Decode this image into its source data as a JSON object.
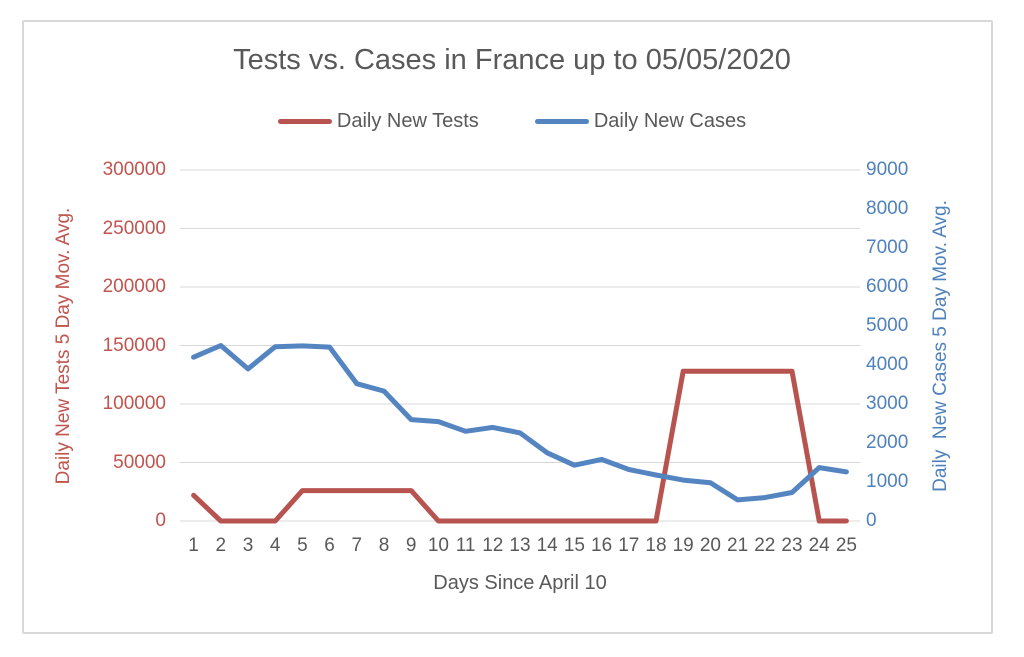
{
  "chart": {
    "title": "Tests vs. Cases in France up to 05/05/2020",
    "xlabel": "Days Since April 10"
  },
  "legend": {
    "items": [
      {
        "label": "Daily New Tests",
        "color": "#b85450"
      },
      {
        "label": "Daily New Cases",
        "color": "#5585c1"
      }
    ]
  },
  "chart_data": {
    "type": "line",
    "title": "Tests vs. Cases in France up to 05/05/2020",
    "xlabel": "Days Since April 10",
    "x": [
      1,
      2,
      3,
      4,
      5,
      6,
      7,
      8,
      9,
      10,
      11,
      12,
      13,
      14,
      15,
      16,
      17,
      18,
      19,
      20,
      21,
      22,
      23,
      24,
      25
    ],
    "x_tick_labels": [
      "1",
      "2",
      "3",
      "4",
      "5",
      "6",
      "7",
      "8",
      "9",
      "10",
      "11",
      "12",
      "13",
      "14",
      "15",
      "16",
      "17",
      "18",
      "19",
      "20",
      "21",
      "22",
      "23",
      "24",
      "25"
    ],
    "series": [
      {
        "name": "Daily New Tests",
        "axis": "left",
        "color": "#b85450",
        "values": [
          22000,
          0,
          0,
          0,
          26000,
          26000,
          26000,
          26000,
          26000,
          0,
          0,
          0,
          0,
          0,
          0,
          0,
          0,
          0,
          128000,
          128000,
          128000,
          128000,
          128000,
          0,
          0
        ]
      },
      {
        "name": "Daily New Cases",
        "axis": "right",
        "color": "#5585c1",
        "values": [
          4200,
          4500,
          3900,
          4470,
          4490,
          4460,
          3520,
          3330,
          2600,
          2550,
          2300,
          2400,
          2260,
          1750,
          1430,
          1580,
          1320,
          1180,
          1050,
          980,
          540,
          600,
          730,
          1370,
          1260
        ]
      }
    ],
    "left_axis": {
      "label": "Daily New Tests 5 Day Mov. Avg.",
      "min": 0,
      "max": 300000,
      "ticks": [
        "0",
        "50000",
        "100000",
        "150000",
        "200000",
        "250000",
        "300000"
      ],
      "color": "#c0544e"
    },
    "right_axis": {
      "label": "Daily  New Cases 5 Day Mov. Avg.",
      "min": 0,
      "max": 9000,
      "ticks": [
        "0",
        "1000",
        "2000",
        "3000",
        "4000",
        "5000",
        "6000",
        "7000",
        "8000",
        "9000"
      ],
      "color": "#4f81bd"
    },
    "grid": true,
    "gridline_color": "#d9d9d9",
    "legend_position": "top"
  }
}
